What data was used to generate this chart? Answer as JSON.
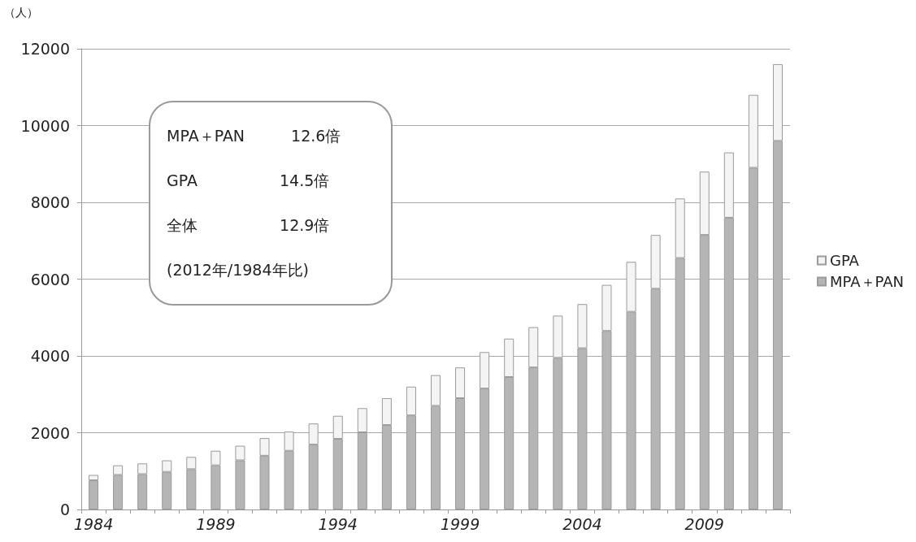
{
  "chart_data": {
    "type": "bar",
    "stacked": true,
    "ylabel": "（人）",
    "categories": [
      "1984",
      null,
      null,
      null,
      null,
      "1989",
      null,
      null,
      null,
      null,
      "1994",
      null,
      null,
      null,
      null,
      "1999",
      null,
      null,
      null,
      null,
      "2004",
      null,
      null,
      null,
      null,
      "2009",
      null,
      null,
      null
    ],
    "series": [
      {
        "name": "MPA＋PAN",
        "color": "#b5b5b5",
        "values": [
          760,
          900,
          920,
          980,
          1050,
          1150,
          1280,
          1400,
          1530,
          1690,
          1840,
          2010,
          2200,
          2450,
          2700,
          2900,
          3150,
          3450,
          3700,
          3950,
          4200,
          4650,
          5150,
          5750,
          6550,
          7150,
          7600,
          8900,
          9600
        ]
      },
      {
        "name": "GPA",
        "color": "#f4f4f4",
        "values": [
          140,
          250,
          280,
          300,
          320,
          380,
          380,
          460,
          500,
          550,
          600,
          630,
          700,
          750,
          800,
          800,
          950,
          1000,
          1050,
          1100,
          1150,
          1200,
          1300,
          1400,
          1550,
          1650,
          1700,
          1900,
          2000
        ]
      }
    ],
    "ylim": [
      0,
      12000
    ],
    "yticks": [
      0,
      2000,
      4000,
      6000,
      8000,
      10000,
      12000
    ],
    "grid": "y",
    "legend": "right",
    "annotations": [
      "MPA＋PAN　　　12.6倍",
      "GPA　　　　　 14.5倍",
      "全体　　　　　 12.9倍",
      "(2012年/1984年比)"
    ]
  }
}
